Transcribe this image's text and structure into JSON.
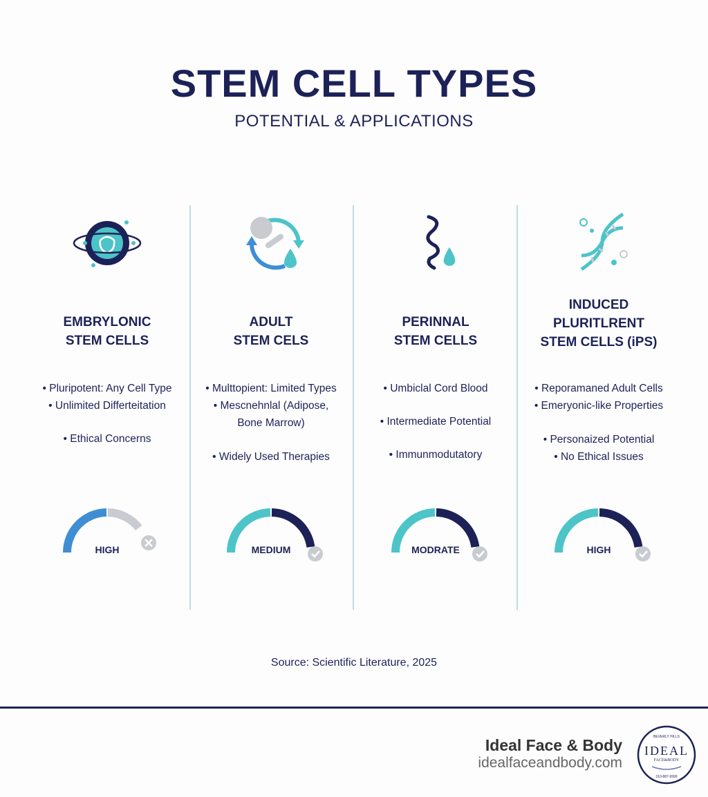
{
  "header": {
    "title": "STEM CELL TYPES",
    "subtitle": "POTENTIAL & APPLICATIONS"
  },
  "columns": [
    {
      "title_lines": [
        "EMBRYLONIC",
        "STEM CELLS"
      ],
      "icon": "embryo-icon",
      "bullets": [
        "• Pluripotent: Any Cell Type",
        "• Unlimited Differteitation",
        "",
        "• Ethical Concerns"
      ],
      "gauge": {
        "label": "HIGH",
        "status_icon": "x-circle-icon",
        "left_color": "#3f8ed4",
        "right_color": "#c8cbd0"
      }
    },
    {
      "title_lines": [
        "ADULT",
        "STEM CELS"
      ],
      "icon": "bone-cycle-icon",
      "bullets": [
        "• Multtopient: Limited Types",
        "• Mescnehnlal (Adipose,",
        "Bone Marrow)",
        "",
        "• Widely Used Therapies"
      ],
      "gauge": {
        "label": "MEDIUM",
        "status_icon": "check-circle-icon",
        "left_color": "#4cc4c8",
        "right_color": "#1c2257"
      }
    },
    {
      "title_lines": [
        "PERINNAL",
        "STEM CELLS"
      ],
      "icon": "umbilical-cord-icon",
      "bullets": [
        "• Umbiclal Cord Blood",
        "",
        "• Intermediate Potential",
        "",
        "• Immunmodutatory"
      ],
      "gauge": {
        "label": "MODRATE",
        "status_icon": "check-circle-icon",
        "left_color": "#4cc4c8",
        "right_color": "#1c2257"
      }
    },
    {
      "title_lines": [
        "INDUCED",
        "PLURITLRENT",
        "STEM CELLS (iPS)"
      ],
      "icon": "dna-icon",
      "bullets": [
        "• Reporamaned Adult Cells",
        "• Emeryonic-like Properties",
        "",
        "• Personaized Potential",
        "• No Ethical Issues"
      ],
      "gauge": {
        "label": "HIGH",
        "status_icon": "check-circle-icon",
        "left_color": "#4cc4c8",
        "right_color": "#1c2257"
      }
    }
  ],
  "footer": {
    "source": "Source: Scientific Literature, 2025",
    "brand_name": "Ideal Face & Body",
    "brand_url": "idealfaceandbody.com",
    "seal_text": [
      "BEVERLY HILLS",
      "IDEAL",
      "FACE&BODY",
      "310-887-9999"
    ]
  },
  "colors": {
    "navy": "#1c2257",
    "teal": "#4cc4c8",
    "blue": "#3f8ed4",
    "gray": "#c8cbd0"
  }
}
